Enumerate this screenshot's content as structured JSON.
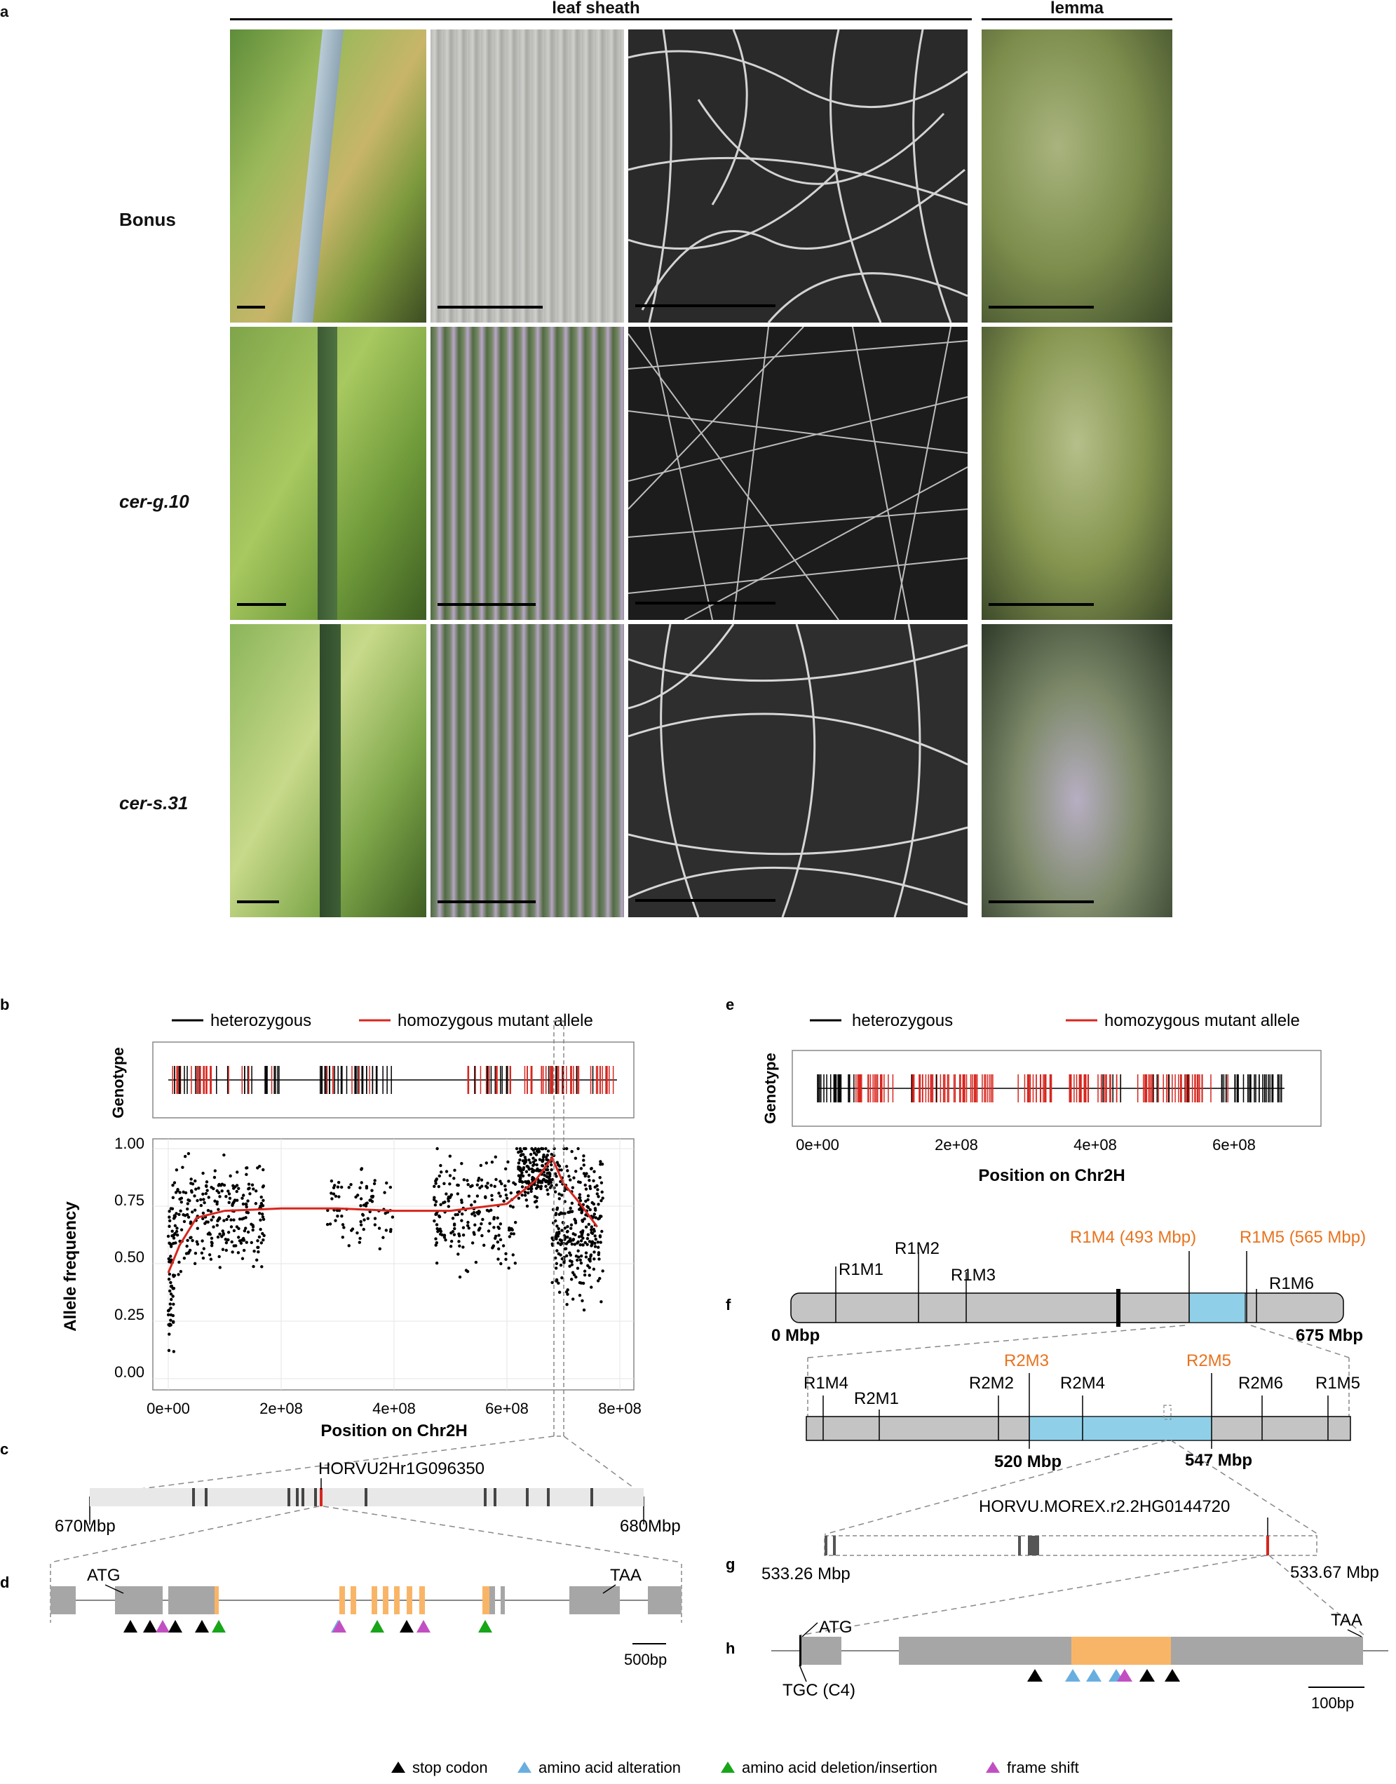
{
  "panel_a": {
    "letter": "a",
    "col_headers": [
      "leaf sheath",
      "lemma"
    ],
    "rows": [
      {
        "label": "Bonus",
        "italic": false
      },
      {
        "label": "cer-g.10",
        "italic": true
      },
      {
        "label": "cer-s.31",
        "italic": true
      }
    ]
  },
  "panel_b": {
    "letter": "b",
    "legend": [
      "heterozygous",
      "homozygous mutant allele"
    ],
    "genotype_label": "Genotype",
    "ylabel": "Allele frequency",
    "xlabel": "Position on Chr2H",
    "yticks": [
      "0.00",
      "0.25",
      "0.50",
      "0.75",
      "1.00"
    ],
    "xticks": [
      "0e+00",
      "2e+08",
      "4e+08",
      "6e+08",
      "8e+08"
    ]
  },
  "panel_c": {
    "letter": "c",
    "gene": "HORVU2Hr1G096350",
    "left": "670Mbp",
    "right": "680Mbp"
  },
  "panel_d": {
    "letter": "d",
    "start": "ATG",
    "stop": "TAA",
    "scale": "500bp"
  },
  "panel_e": {
    "letter": "e",
    "legend": [
      "heterozygous",
      "homozygous mutant allele"
    ],
    "genotype_label": "Genotype",
    "xlabel": "Position on Chr2H",
    "xticks": [
      "0e+00",
      "2e+08",
      "4e+08",
      "6e+08"
    ]
  },
  "panel_f": {
    "letter": "f",
    "row1_markers": [
      "R1M1",
      "R1M2",
      "R1M3",
      "R1M4 (493 Mbp)",
      "R1M5 (565 Mbp)",
      "R1M6"
    ],
    "row1_left": "0 Mbp",
    "row1_right": "675 Mbp",
    "row2_markers": [
      "R1M4",
      "R2M1",
      "R2M2",
      "R2M3",
      "R2M4",
      "R2M5",
      "R2M6",
      "R1M5"
    ],
    "row2_left": "520 Mbp",
    "row2_right": "547 Mbp",
    "highlight_color": "#e8731e"
  },
  "panel_g": {
    "letter": "g",
    "gene": "HORVU.MOREX.r2.2HG0144720",
    "left": "533.26 Mbp",
    "right": "533.67 Mbp"
  },
  "panel_h": {
    "letter": "h",
    "start": "ATG",
    "stop": "TAA",
    "start_note": "TGC (C4)",
    "scale": "100bp"
  },
  "legend_bottom": [
    {
      "label": "stop codon",
      "color": "#000000"
    },
    {
      "label": "amino acid alteration",
      "color": "#6aaee0"
    },
    {
      "label": "amino acid deletion/insertion",
      "color": "#19a519"
    },
    {
      "label": "frame shift",
      "color": "#c24fc2"
    }
  ],
  "colors": {
    "red": "#d7261e",
    "blue": "#8fd0e8",
    "orange": "#f9b567",
    "gray": "#a6a6a6"
  }
}
